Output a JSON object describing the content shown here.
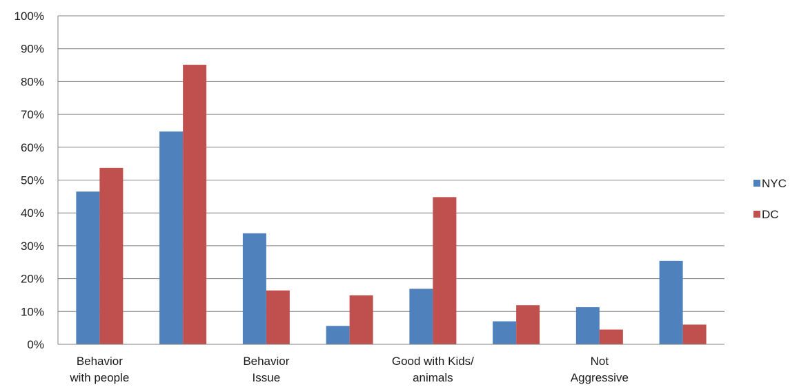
{
  "chart_data": {
    "type": "bar",
    "title": "",
    "xlabel": "",
    "ylabel": "",
    "ylim": [
      0,
      100
    ],
    "y_ticks": [
      "0%",
      "10%",
      "20%",
      "30%",
      "40%",
      "50%",
      "60%",
      "70%",
      "80%",
      "90%",
      "100%"
    ],
    "grid": true,
    "legend_position": "right",
    "categories": [
      "Behavior\nwith people",
      "",
      "Behavior\nIssue",
      "",
      "Good with Kids/\nanimals",
      "",
      "Not\nAggressive",
      ""
    ],
    "series": [
      {
        "name": "NYC",
        "color": "#4f81bd",
        "values": [
          46.5,
          64.8,
          33.8,
          5.6,
          16.9,
          7.0,
          11.3,
          25.4
        ]
      },
      {
        "name": "DC",
        "color": "#c0504d",
        "values": [
          53.7,
          85.1,
          16.4,
          14.9,
          44.8,
          11.9,
          4.5,
          6.0
        ]
      }
    ]
  }
}
